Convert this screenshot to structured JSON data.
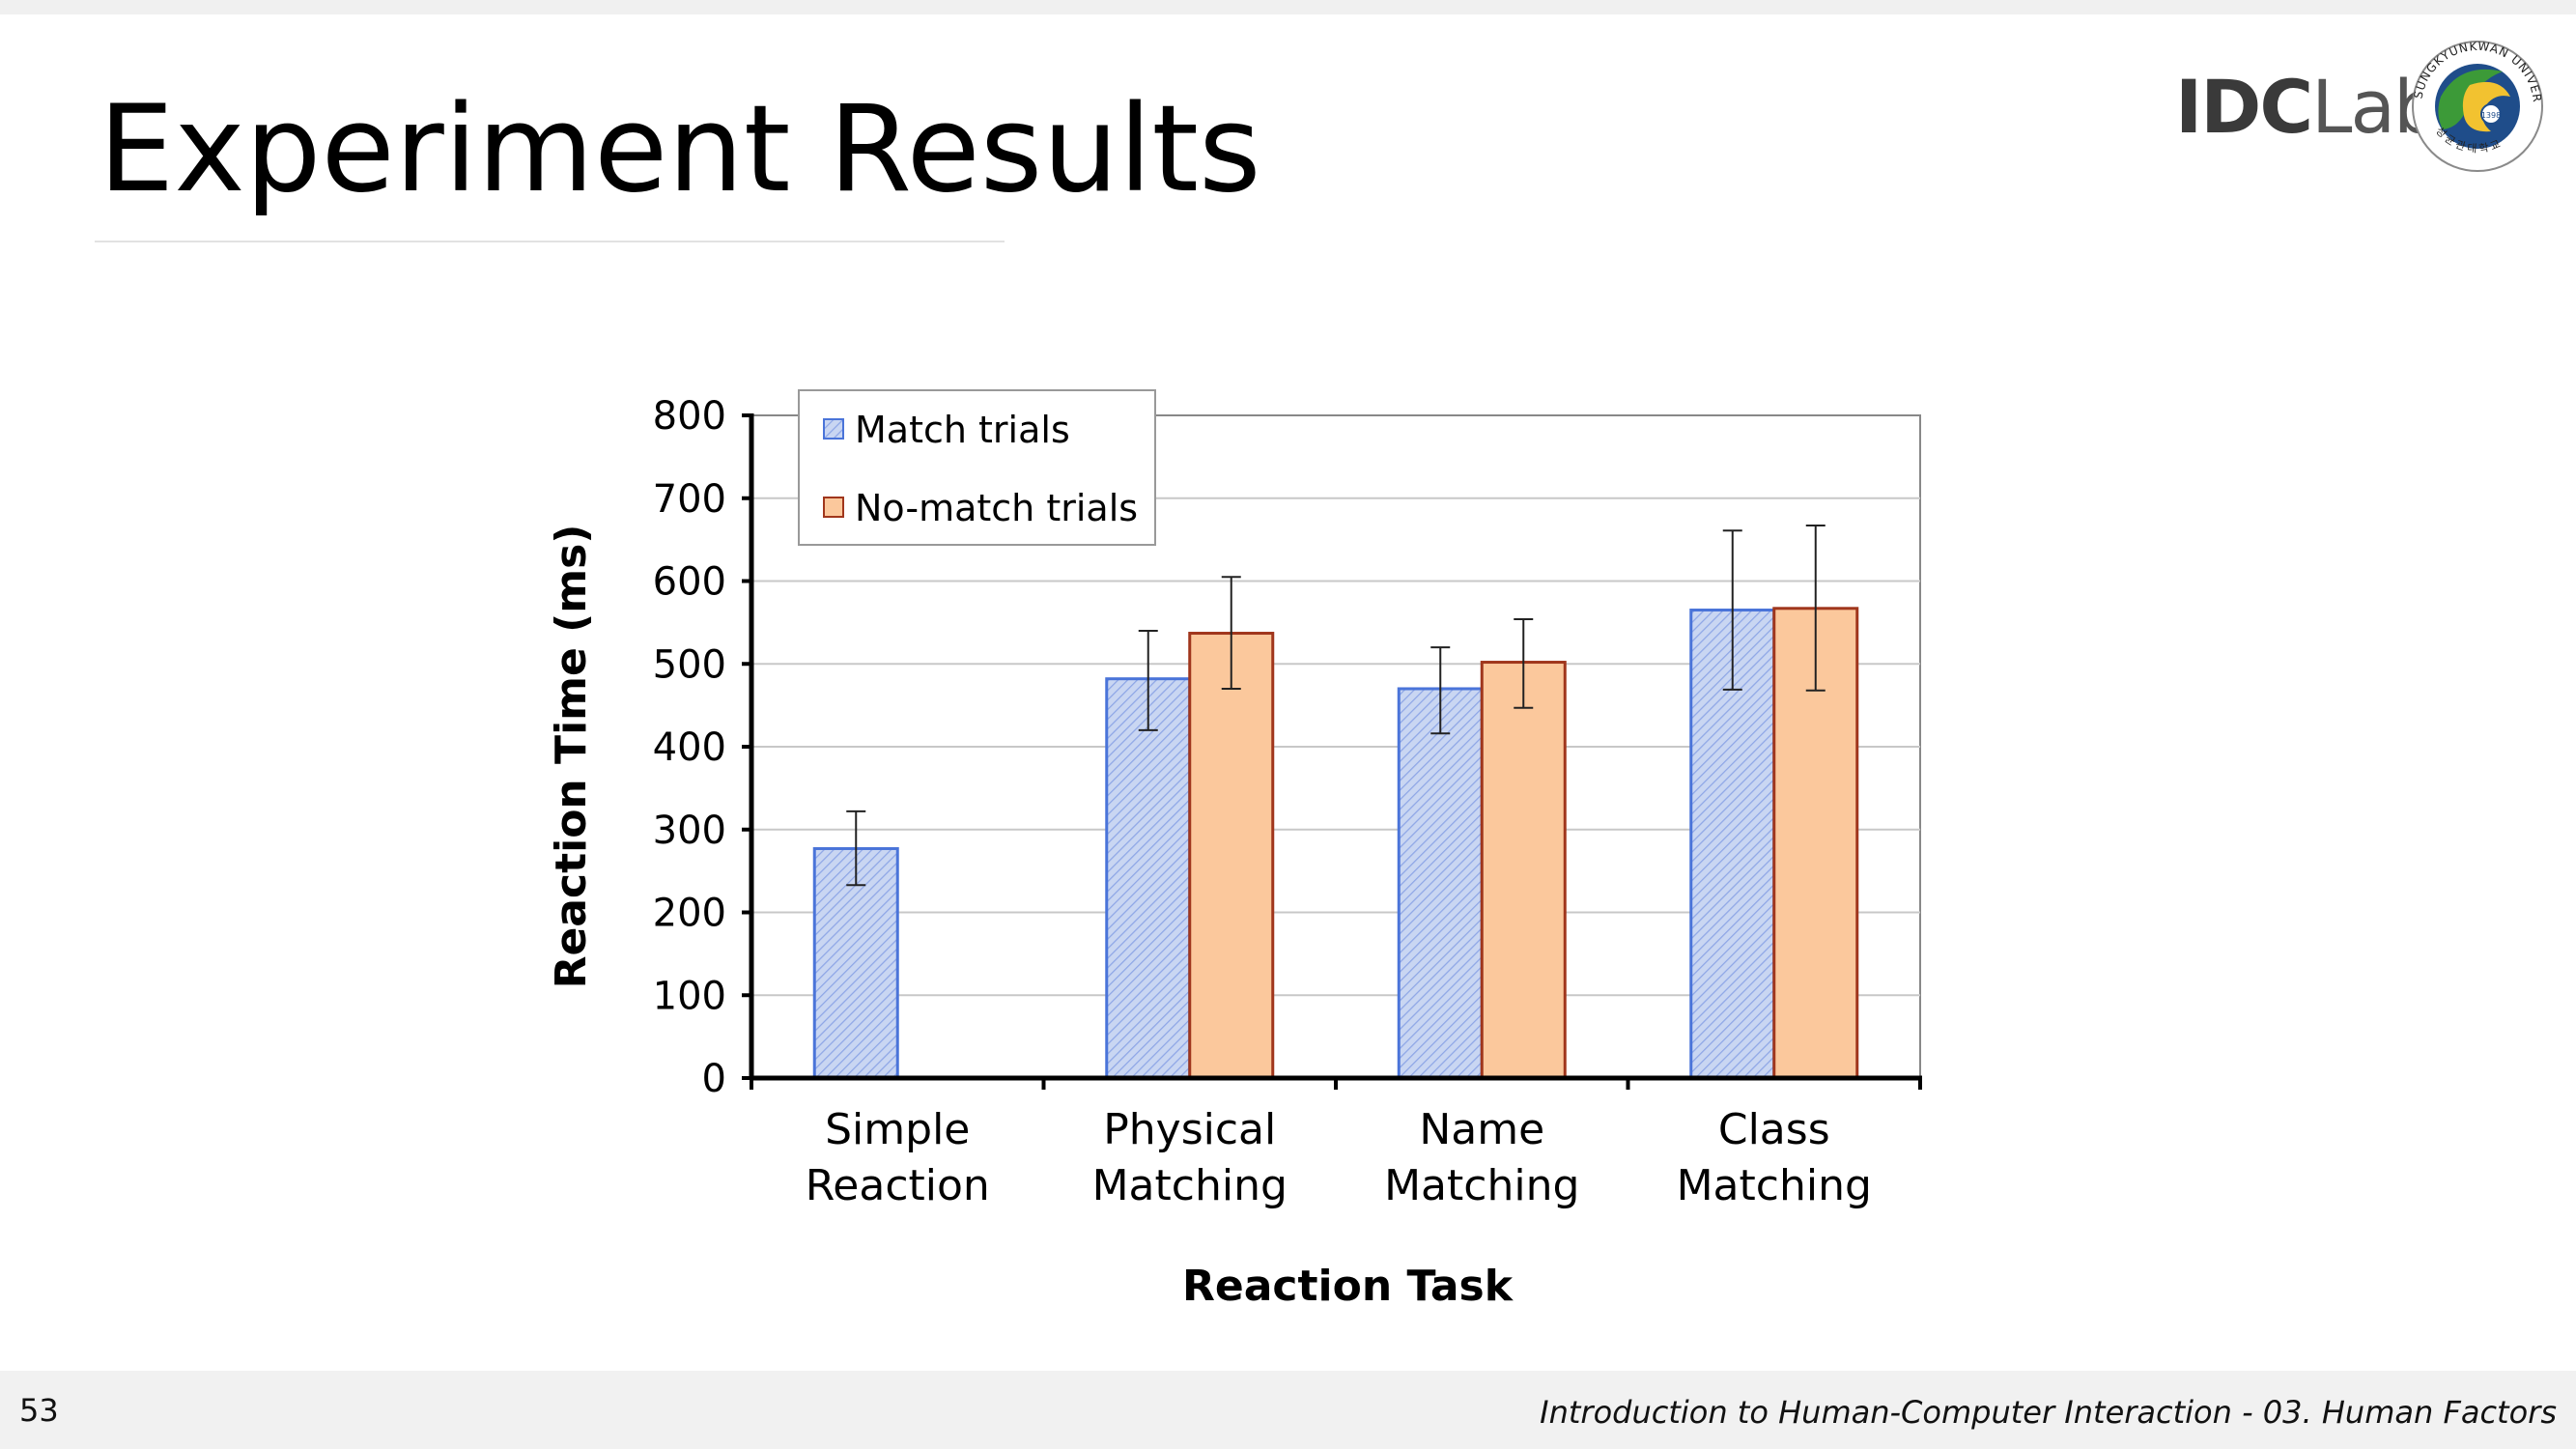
{
  "slide": {
    "title": "Experiment Results",
    "page_number": "53",
    "course": "Introduction to Human-Computer Interaction - 03. Human Factors"
  },
  "logo": {
    "idc": "IDC",
    "lab": "Lab",
    "seal_text": "SUNGKYUNKWAN UNIVERSITY",
    "seal_year": "1398",
    "seal_korean": "성균관대학교",
    "seal_icon": "university-seal-icon"
  },
  "chart_data": {
    "type": "bar",
    "xlabel": "Reaction Task",
    "ylabel": "Reaction Time (ms)",
    "ylim": [
      0,
      800
    ],
    "yticks": [
      0,
      100,
      200,
      300,
      400,
      500,
      600,
      700,
      800
    ],
    "ytick_labels": [
      "0",
      "100",
      "200",
      "300",
      "400",
      "500",
      "600",
      "700",
      "800"
    ],
    "grid": true,
    "legend_position": "top-left",
    "categories": [
      [
        "Simple",
        "Reaction"
      ],
      [
        "Physical",
        "Matching"
      ],
      [
        "Name",
        "Matching"
      ],
      [
        "Class",
        "Matching"
      ]
    ],
    "series": [
      {
        "name": "Match trials",
        "fill": "#c9d6f2",
        "stroke": "#4a74d9",
        "hatch": "#8ea6e6",
        "values": [
          277,
          482,
          470,
          565
        ],
        "err_low": [
          233,
          420,
          416,
          469
        ],
        "err_high": [
          322,
          540,
          520,
          661
        ]
      },
      {
        "name": "No-match trials",
        "fill": "#fbc89c",
        "stroke": "#a0361c",
        "values": [
          null,
          537,
          502,
          567
        ],
        "err_low": [
          null,
          470,
          447,
          468
        ],
        "err_high": [
          null,
          605,
          554,
          667
        ]
      }
    ]
  }
}
